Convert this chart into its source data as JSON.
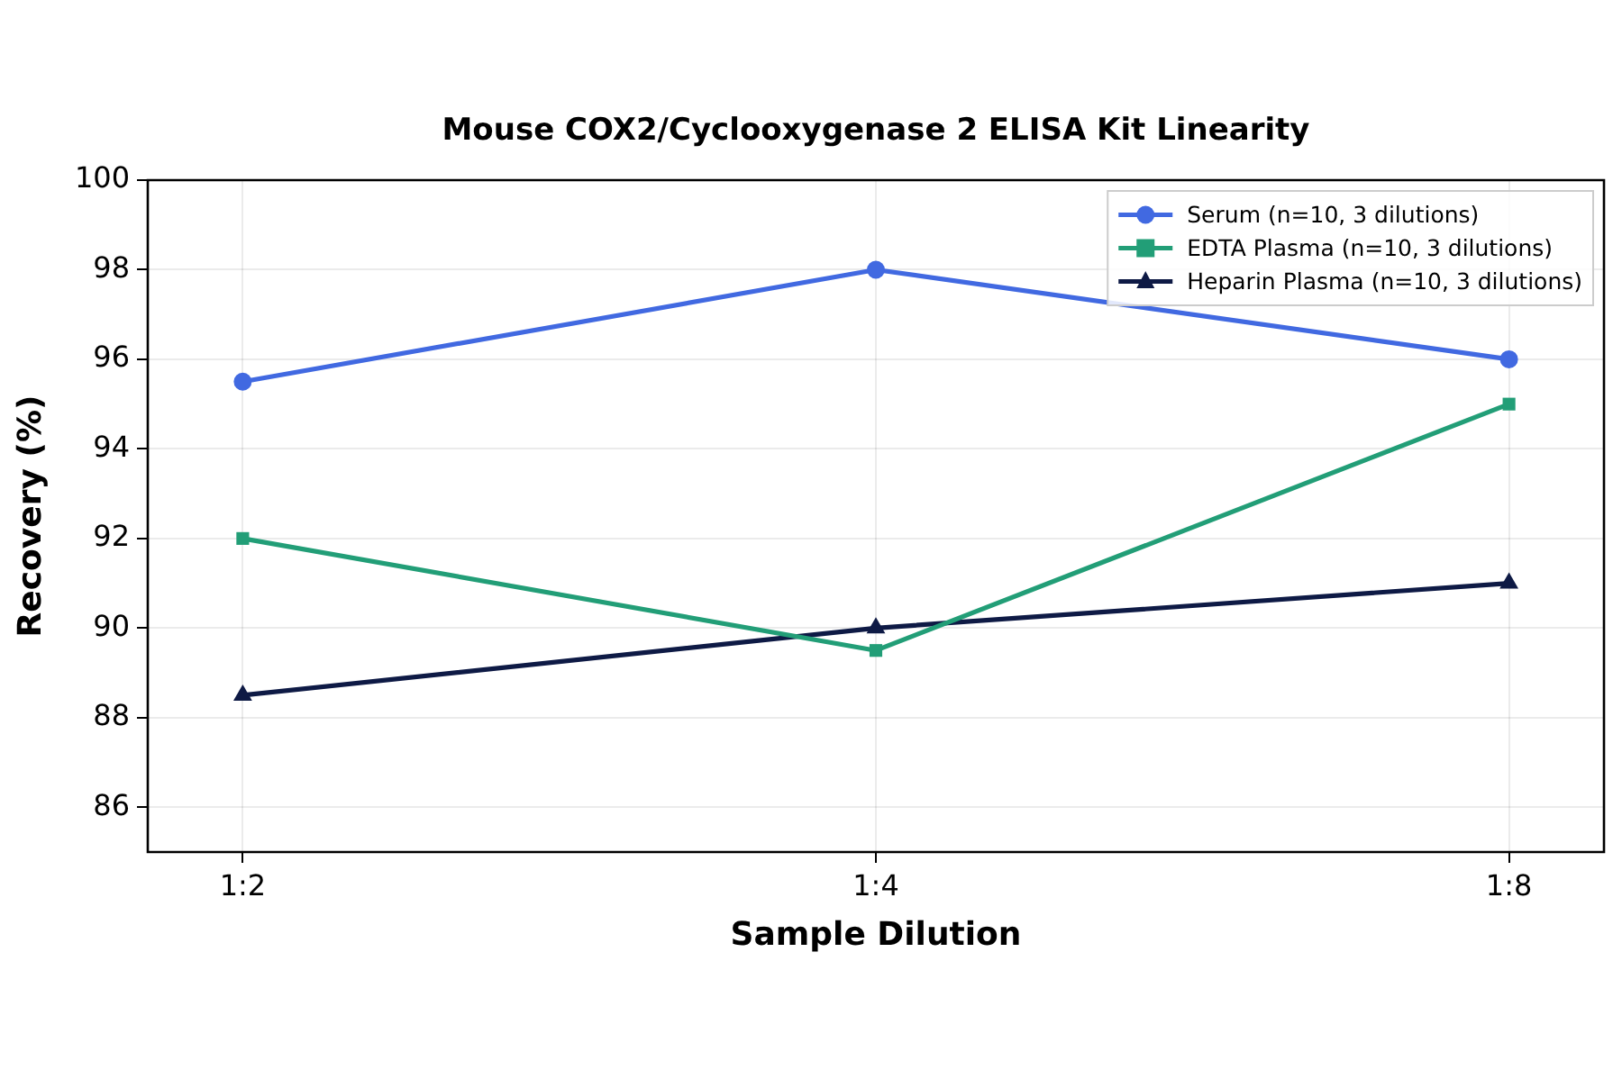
{
  "chart_data": {
    "type": "line",
    "title": "Mouse COX2/Cyclooxygenase 2 ELISA Kit Linearity",
    "xlabel": "Sample Dilution",
    "ylabel": "Recovery (%)",
    "categories": [
      "1:2",
      "1:4",
      "1:8"
    ],
    "series": [
      {
        "name": "Serum (n=10, 3 dilutions)",
        "color": "#4169e1",
        "values": [
          95.5,
          98,
          96
        ],
        "marker": "circle"
      },
      {
        "name": "EDTA Plasma (n=10, 3 dilutions)",
        "color": "#229e77",
        "values": [
          92,
          89.5,
          95
        ],
        "marker": "square"
      },
      {
        "name": "Heparin Plasma (n=10, 3 dilutions)",
        "color": "#0e1a45",
        "values": [
          88.5,
          90,
          91
        ],
        "marker": "triangle"
      }
    ],
    "ylim": [
      85,
      100
    ],
    "yticks": [
      86,
      88,
      90,
      92,
      94,
      96,
      98,
      100
    ],
    "grid": true,
    "legend": "top right",
    "line_style": "solid"
  }
}
